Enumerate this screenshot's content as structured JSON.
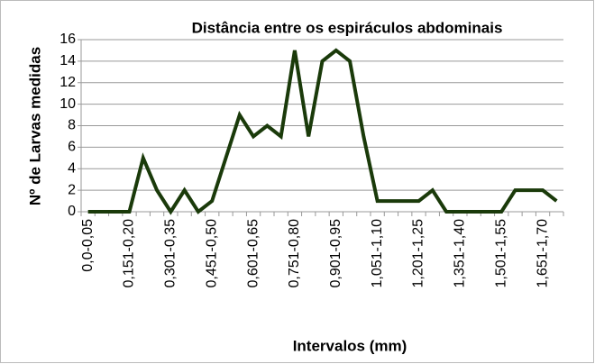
{
  "chart_data": {
    "type": "line",
    "title": "Distância entre os espiráculos abdominais",
    "x_label": "Intervalos (mm)",
    "y_label": "Nº de Larvas medidas",
    "categories": [
      "0,0-0,05",
      null,
      null,
      "0,151-0,20",
      null,
      null,
      "0,301-0,35",
      null,
      null,
      "0,451-0,50",
      null,
      null,
      "0,601-0,65",
      null,
      null,
      "0,751-0,80",
      null,
      null,
      "0,901-0,95",
      null,
      null,
      "1,051-1,10",
      null,
      null,
      "1,201-1,25",
      null,
      null,
      "1,351-1,40",
      null,
      null,
      "1,501-1,55",
      null,
      null,
      "1,651-1,70",
      null
    ],
    "series": [
      {
        "name": "Nº de Larvas medidas",
        "color": "#1a3a0a",
        "values": [
          0,
          0,
          0,
          0,
          5,
          2,
          0,
          2,
          0,
          1,
          5,
          9,
          7,
          8,
          7,
          15,
          7,
          14,
          15,
          14,
          7,
          1,
          1,
          1,
          1,
          2,
          0,
          0,
          0,
          0,
          0,
          2,
          2,
          2,
          1
        ]
      }
    ],
    "ylim": [
      0,
      16
    ],
    "yticks": [
      0,
      2,
      4,
      6,
      8,
      10,
      12,
      14,
      16
    ],
    "grid": true,
    "legend": false
  }
}
